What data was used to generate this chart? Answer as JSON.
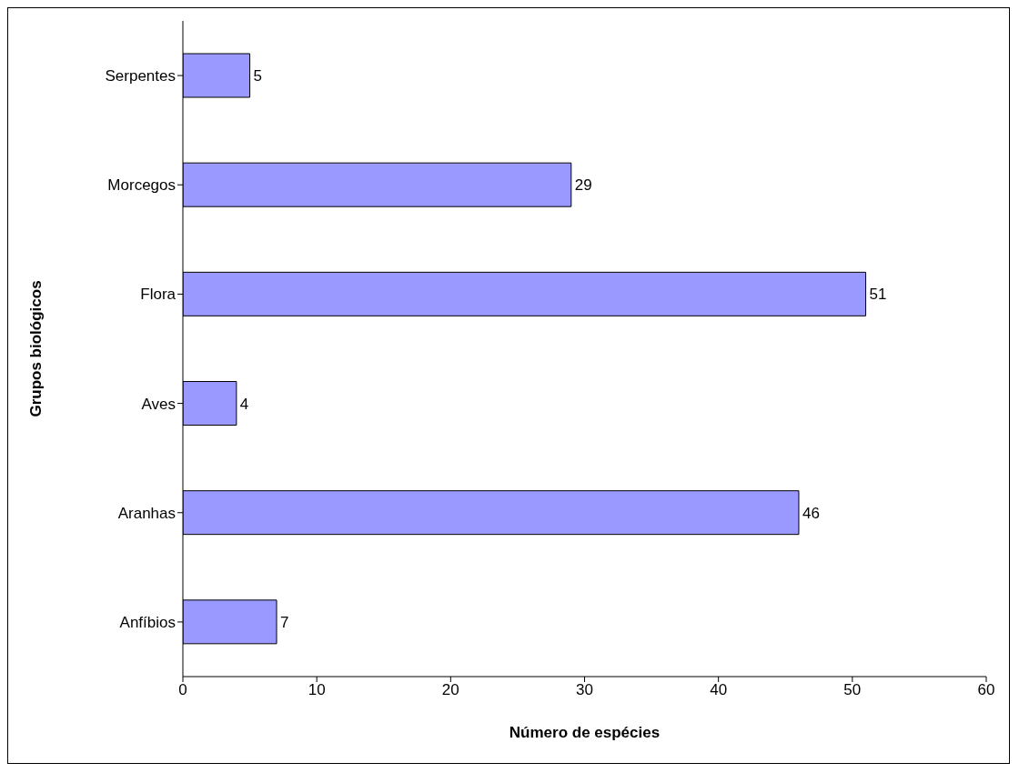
{
  "chart_data": {
    "type": "bar",
    "orientation": "horizontal",
    "xlabel": "Número de espécies",
    "ylabel": "Grupos biológicos",
    "categories": [
      "Serpentes",
      "Morcegos",
      "Flora",
      "Aves",
      "Aranhas",
      "Anfíbios"
    ],
    "values": [
      5,
      29,
      51,
      4,
      46,
      7
    ],
    "color": "#9999ff",
    "xlim": [
      0,
      60
    ],
    "xticks": [
      0,
      10,
      20,
      30,
      40,
      50,
      60
    ],
    "grid": false,
    "data_labels": true
  }
}
